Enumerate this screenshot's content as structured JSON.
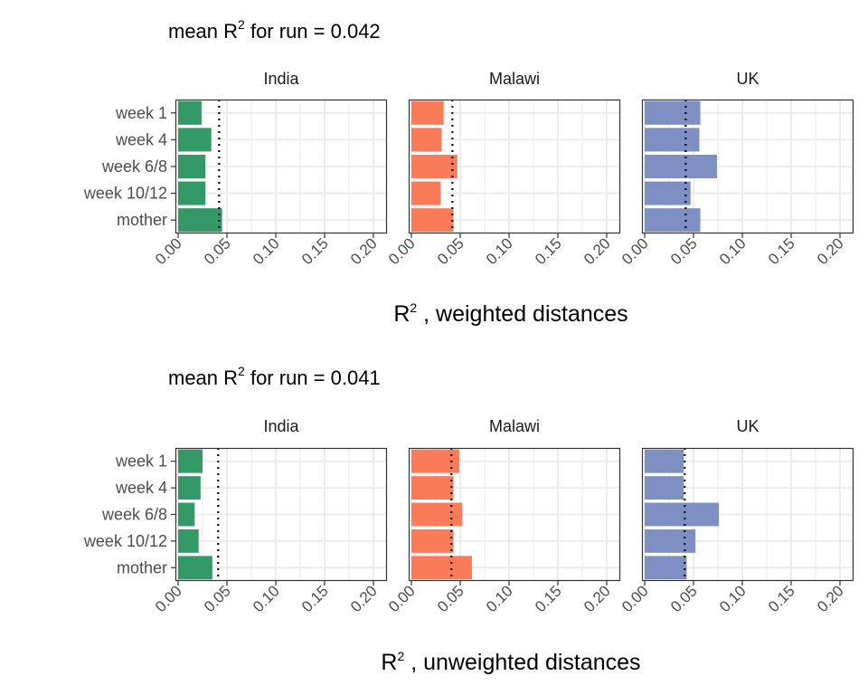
{
  "chart_data": [
    {
      "type": "bar",
      "orientation": "horizontal",
      "title": "mean R",
      "title_sup": "2",
      "title_rest": " for run = 0.042",
      "xlabel": "R",
      "xlabel_sup": "2",
      "xlabel_rest": " , weighted distances",
      "xlim": [
        0,
        0.2
      ],
      "x_ticks": [
        "0.00",
        "0.05",
        "0.10",
        "0.15",
        "0.20"
      ],
      "grid": true,
      "reference_line": {
        "value": 0.042,
        "style": "dotted"
      },
      "categories": [
        "week 1",
        "week 4",
        "week 6/8",
        "week 10/12",
        "mother"
      ],
      "facets": [
        {
          "name": "India",
          "color": "#339966",
          "values": [
            0.024,
            0.034,
            0.028,
            0.028,
            0.045
          ]
        },
        {
          "name": "Malawi",
          "color": "#f97b57",
          "values": [
            0.033,
            0.031,
            0.047,
            0.03,
            0.043
          ]
        },
        {
          "name": "UK",
          "color": "#7e90c3",
          "values": [
            0.057,
            0.056,
            0.074,
            0.047,
            0.057
          ]
        }
      ]
    },
    {
      "type": "bar",
      "orientation": "horizontal",
      "title": "mean R",
      "title_sup": "2",
      "title_rest": " for run = 0.041",
      "xlabel": "R",
      "xlabel_sup": "2",
      "xlabel_rest": " , unweighted distances",
      "xlim": [
        0,
        0.2
      ],
      "x_ticks": [
        "0.00",
        "0.05",
        "0.10",
        "0.15",
        "0.20"
      ],
      "grid": true,
      "reference_line": {
        "value": 0.041,
        "style": "dotted"
      },
      "categories": [
        "week 1",
        "week 4",
        "week 6/8",
        "week 10/12",
        "mother"
      ],
      "facets": [
        {
          "name": "India",
          "color": "#339966",
          "values": [
            0.025,
            0.023,
            0.017,
            0.021,
            0.035
          ]
        },
        {
          "name": "Malawi",
          "color": "#f97b57",
          "values": [
            0.049,
            0.043,
            0.052,
            0.043,
            0.062
          ]
        },
        {
          "name": "UK",
          "color": "#7e90c3",
          "values": [
            0.04,
            0.04,
            0.076,
            0.052,
            0.043
          ]
        }
      ]
    }
  ]
}
